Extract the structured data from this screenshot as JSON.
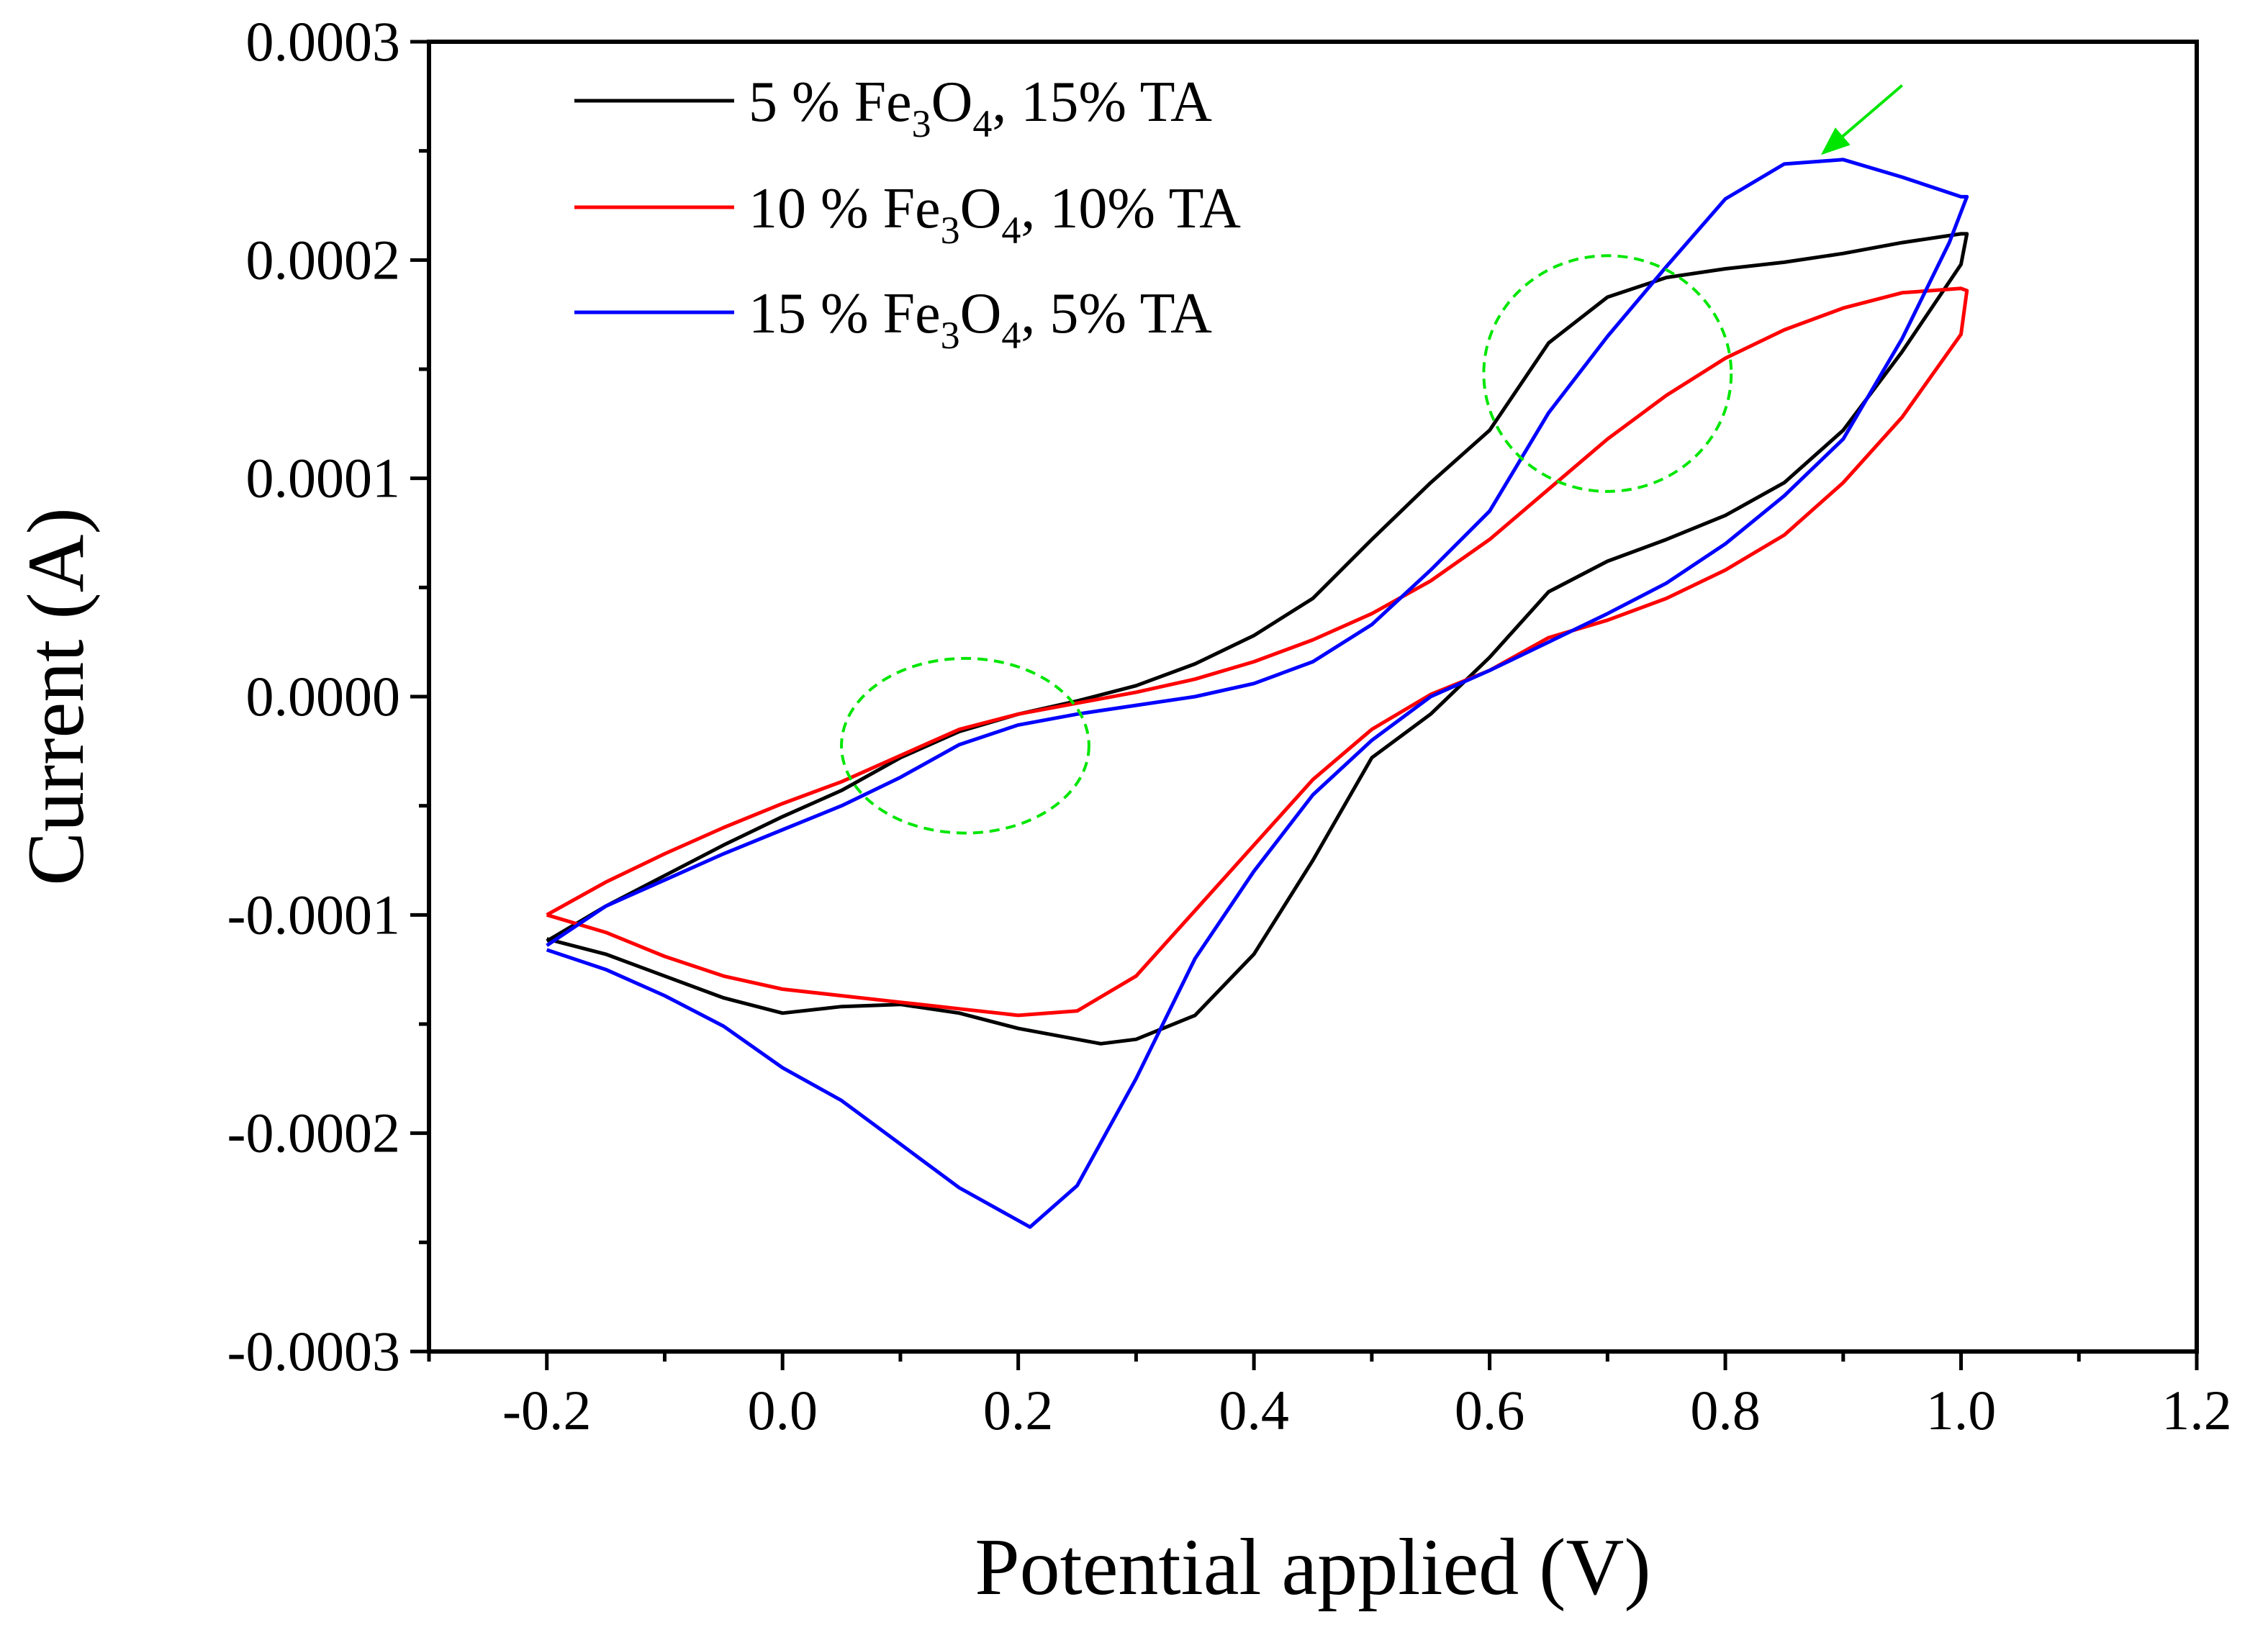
{
  "chart_data": {
    "type": "line",
    "title": "",
    "xlabel": "Potential applied (V)",
    "ylabel": "Current (A)",
    "xlim": [
      -0.3,
      1.2
    ],
    "ylim": [
      -0.0003,
      0.0003
    ],
    "grid": false,
    "legend_position": "top-left",
    "x_ticks": [
      "-0.2",
      "0.0",
      "0.2",
      "0.4",
      "0.6",
      "0.8",
      "1.0",
      "1.2"
    ],
    "y_ticks": [
      "0.0003",
      "0.0002",
      "0.0001",
      "0.0000",
      "-0.0001",
      "-0.0002",
      "-0.0003"
    ],
    "legend": [
      {
        "pre": "5 % Fe",
        "s1": "3",
        "mid": "O",
        "s2": "4",
        "post": ", 15% TA"
      },
      {
        "pre": "10 % Fe",
        "s1": "3",
        "mid": "O",
        "s2": "4",
        "post": ", 10% TA"
      },
      {
        "pre": "15 % Fe",
        "s1": "3",
        "mid": "O",
        "s2": "4",
        "post": ", 5% TA"
      }
    ],
    "series": [
      {
        "name": "5 % Fe3O4, 15% TA",
        "color": "#000000",
        "points": [
          [
            -0.2,
            -0.000112
          ],
          [
            -0.15,
            -9.6e-05
          ],
          [
            -0.1,
            -8.2e-05
          ],
          [
            -0.05,
            -6.8e-05
          ],
          [
            0.0,
            -5.5e-05
          ],
          [
            0.05,
            -4.3e-05
          ],
          [
            0.1,
            -2.8e-05
          ],
          [
            0.15,
            -1.6e-05
          ],
          [
            0.2,
            -8e-06
          ],
          [
            0.25,
            -2e-06
          ],
          [
            0.3,
            5e-06
          ],
          [
            0.35,
            1.5e-05
          ],
          [
            0.4,
            2.8e-05
          ],
          [
            0.45,
            4.5e-05
          ],
          [
            0.5,
            7.2e-05
          ],
          [
            0.55,
            9.8e-05
          ],
          [
            0.6,
            0.000122
          ],
          [
            0.65,
            0.000162
          ],
          [
            0.7,
            0.000183
          ],
          [
            0.75,
            0.000192
          ],
          [
            0.8,
            0.000196
          ],
          [
            0.85,
            0.000199
          ],
          [
            0.9,
            0.000203
          ],
          [
            0.95,
            0.000208
          ],
          [
            1.0,
            0.000212
          ],
          [
            1.005,
            0.000212
          ],
          [
            1.0,
            0.000198
          ],
          [
            0.95,
            0.000158
          ],
          [
            0.9,
            0.000122
          ],
          [
            0.85,
            9.8e-05
          ],
          [
            0.8,
            8.3e-05
          ],
          [
            0.75,
            7.2e-05
          ],
          [
            0.7,
            6.2e-05
          ],
          [
            0.65,
            4.8e-05
          ],
          [
            0.6,
            1.8e-05
          ],
          [
            0.55,
            -8e-06
          ],
          [
            0.5,
            -2.8e-05
          ],
          [
            0.45,
            -7.5e-05
          ],
          [
            0.4,
            -0.000118
          ],
          [
            0.35,
            -0.000146
          ],
          [
            0.3,
            -0.000157
          ],
          [
            0.27,
            -0.000159
          ],
          [
            0.2,
            -0.000152
          ],
          [
            0.15,
            -0.000145
          ],
          [
            0.1,
            -0.000141
          ],
          [
            0.05,
            -0.000142
          ],
          [
            0.0,
            -0.000145
          ],
          [
            -0.05,
            -0.000138
          ],
          [
            -0.1,
            -0.000128
          ],
          [
            -0.15,
            -0.000118
          ],
          [
            -0.2,
            -0.000111
          ]
        ]
      },
      {
        "name": "10 % Fe3O4, 10% TA",
        "color": "#ff0000",
        "points": [
          [
            -0.2,
            -0.0001
          ],
          [
            -0.15,
            -8.5e-05
          ],
          [
            -0.1,
            -7.2e-05
          ],
          [
            -0.05,
            -6e-05
          ],
          [
            0.0,
            -4.9e-05
          ],
          [
            0.05,
            -3.9e-05
          ],
          [
            0.1,
            -2.7e-05
          ],
          [
            0.15,
            -1.5e-05
          ],
          [
            0.2,
            -8e-06
          ],
          [
            0.25,
            -3e-06
          ],
          [
            0.3,
            2e-06
          ],
          [
            0.35,
            8e-06
          ],
          [
            0.4,
            1.6e-05
          ],
          [
            0.45,
            2.6e-05
          ],
          [
            0.5,
            3.8e-05
          ],
          [
            0.55,
            5.3e-05
          ],
          [
            0.6,
            7.2e-05
          ],
          [
            0.65,
            9.5e-05
          ],
          [
            0.7,
            0.000118
          ],
          [
            0.75,
            0.000138
          ],
          [
            0.8,
            0.000155
          ],
          [
            0.85,
            0.000168
          ],
          [
            0.9,
            0.000178
          ],
          [
            0.95,
            0.000185
          ],
          [
            1.0,
            0.000187
          ],
          [
            1.005,
            0.000186
          ],
          [
            1.0,
            0.000166
          ],
          [
            0.95,
            0.000128
          ],
          [
            0.9,
            9.8e-05
          ],
          [
            0.85,
            7.4e-05
          ],
          [
            0.8,
            5.8e-05
          ],
          [
            0.75,
            4.5e-05
          ],
          [
            0.7,
            3.5e-05
          ],
          [
            0.65,
            2.7e-05
          ],
          [
            0.6,
            1.2e-05
          ],
          [
            0.55,
            1e-06
          ],
          [
            0.5,
            -1.5e-05
          ],
          [
            0.45,
            -3.8e-05
          ],
          [
            0.4,
            -6.8e-05
          ],
          [
            0.35,
            -9.8e-05
          ],
          [
            0.3,
            -0.000128
          ],
          [
            0.25,
            -0.000144
          ],
          [
            0.2,
            -0.000146
          ],
          [
            0.15,
            -0.000143
          ],
          [
            0.1,
            -0.00014
          ],
          [
            0.05,
            -0.000137
          ],
          [
            0.0,
            -0.000134
          ],
          [
            -0.05,
            -0.000128
          ],
          [
            -0.1,
            -0.000119
          ],
          [
            -0.15,
            -0.000108
          ],
          [
            -0.2,
            -0.0001
          ]
        ]
      },
      {
        "name": "15 % Fe3O4, 5% TA",
        "color": "#0000ff",
        "points": [
          [
            -0.2,
            -0.000114
          ],
          [
            -0.15,
            -9.6e-05
          ],
          [
            -0.1,
            -8.4e-05
          ],
          [
            -0.05,
            -7.2e-05
          ],
          [
            0.0,
            -6.1e-05
          ],
          [
            0.05,
            -5e-05
          ],
          [
            0.1,
            -3.7e-05
          ],
          [
            0.15,
            -2.2e-05
          ],
          [
            0.2,
            -1.3e-05
          ],
          [
            0.25,
            -8e-06
          ],
          [
            0.3,
            -4e-06
          ],
          [
            0.35,
            0.0
          ],
          [
            0.4,
            6e-06
          ],
          [
            0.45,
            1.6e-05
          ],
          [
            0.5,
            3.3e-05
          ],
          [
            0.55,
            5.8e-05
          ],
          [
            0.6,
            8.5e-05
          ],
          [
            0.65,
            0.00013
          ],
          [
            0.7,
            0.000165
          ],
          [
            0.75,
            0.000197
          ],
          [
            0.8,
            0.000228
          ],
          [
            0.85,
            0.000244
          ],
          [
            0.9,
            0.000246
          ],
          [
            0.95,
            0.000238
          ],
          [
            1.0,
            0.000229
          ],
          [
            1.005,
            0.000229
          ],
          [
            0.99,
            0.000208
          ],
          [
            0.95,
            0.000164
          ],
          [
            0.9,
            0.000118
          ],
          [
            0.85,
            9.2e-05
          ],
          [
            0.8,
            7e-05
          ],
          [
            0.75,
            5.2e-05
          ],
          [
            0.7,
            3.8e-05
          ],
          [
            0.65,
            2.5e-05
          ],
          [
            0.6,
            1.2e-05
          ],
          [
            0.55,
            0.0
          ],
          [
            0.5,
            -2e-05
          ],
          [
            0.45,
            -4.5e-05
          ],
          [
            0.4,
            -8e-05
          ],
          [
            0.35,
            -0.00012
          ],
          [
            0.3,
            -0.000175
          ],
          [
            0.25,
            -0.000224
          ],
          [
            0.21,
            -0.000243
          ],
          [
            0.15,
            -0.000225
          ],
          [
            0.1,
            -0.000205
          ],
          [
            0.05,
            -0.000185
          ],
          [
            0.0,
            -0.00017
          ],
          [
            -0.05,
            -0.000151
          ],
          [
            -0.1,
            -0.000137
          ],
          [
            -0.15,
            -0.000125
          ],
          [
            -0.2,
            -0.000116
          ]
        ]
      }
    ],
    "annotations": [
      {
        "type": "ellipse",
        "cx": 0.155,
        "cy": -2.25e-05,
        "rx": 0.105,
        "ry": 4e-05,
        "color": "#00e600",
        "style": "dashed"
      },
      {
        "type": "ellipse",
        "cx": 0.7,
        "cy": 0.000148,
        "rx": 0.105,
        "ry": 5.4e-05,
        "color": "#00e600",
        "style": "dashed"
      },
      {
        "type": "arrow",
        "from": [
          0.95,
          0.00028
        ],
        "to": [
          0.883,
          0.000249
        ],
        "color": "#00e600"
      }
    ]
  }
}
